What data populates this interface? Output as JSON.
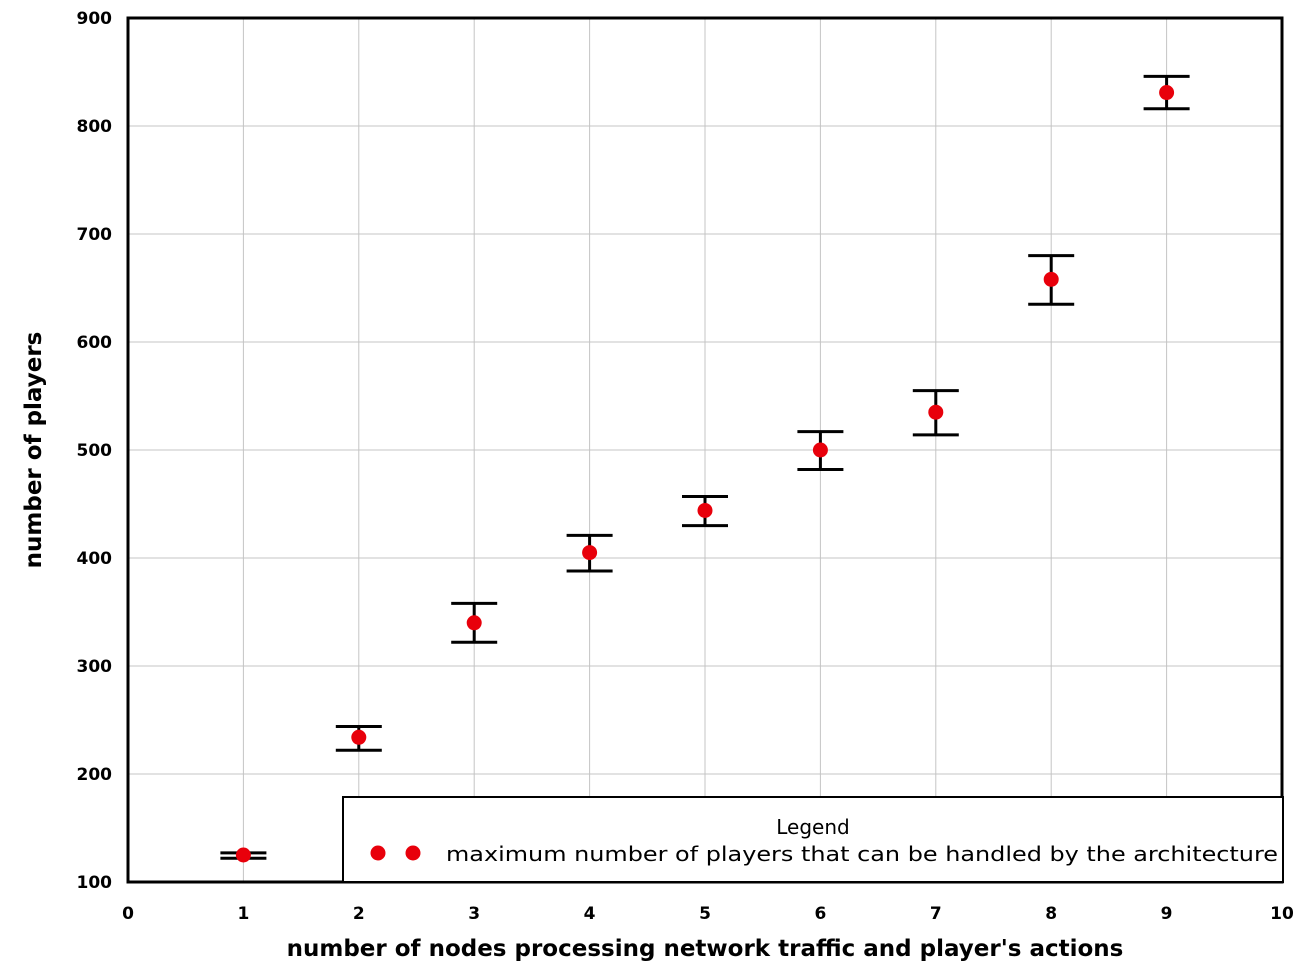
{
  "chart_data": {
    "type": "scatter",
    "xlabel": "number of nodes processing network traffic and player's actions",
    "ylabel": "number of players",
    "xlim": [
      0,
      10
    ],
    "ylim": [
      100,
      900
    ],
    "x_ticks": [
      0,
      1,
      2,
      3,
      4,
      5,
      6,
      7,
      8,
      9,
      10
    ],
    "y_ticks": [
      100,
      200,
      300,
      400,
      500,
      600,
      700,
      800,
      900
    ],
    "grid": true,
    "legend": {
      "title": "Legend",
      "placement": "bottom-right"
    },
    "series": [
      {
        "name": "maximum number of players that can be handled by the architecture",
        "color": "#e8000b",
        "points": [
          {
            "x": 1,
            "y": 125,
            "err_low": 122,
            "err_high": 127
          },
          {
            "x": 2,
            "y": 234,
            "err_low": 222,
            "err_high": 244
          },
          {
            "x": 3,
            "y": 340,
            "err_low": 322,
            "err_high": 358
          },
          {
            "x": 4,
            "y": 405,
            "err_low": 388,
            "err_high": 421
          },
          {
            "x": 5,
            "y": 444,
            "err_low": 430,
            "err_high": 457
          },
          {
            "x": 6,
            "y": 500,
            "err_low": 482,
            "err_high": 517
          },
          {
            "x": 7,
            "y": 535,
            "err_low": 514,
            "err_high": 555
          },
          {
            "x": 8,
            "y": 658,
            "err_low": 635,
            "err_high": 680
          },
          {
            "x": 9,
            "y": 831,
            "err_low": 816,
            "err_high": 846
          }
        ]
      }
    ]
  }
}
